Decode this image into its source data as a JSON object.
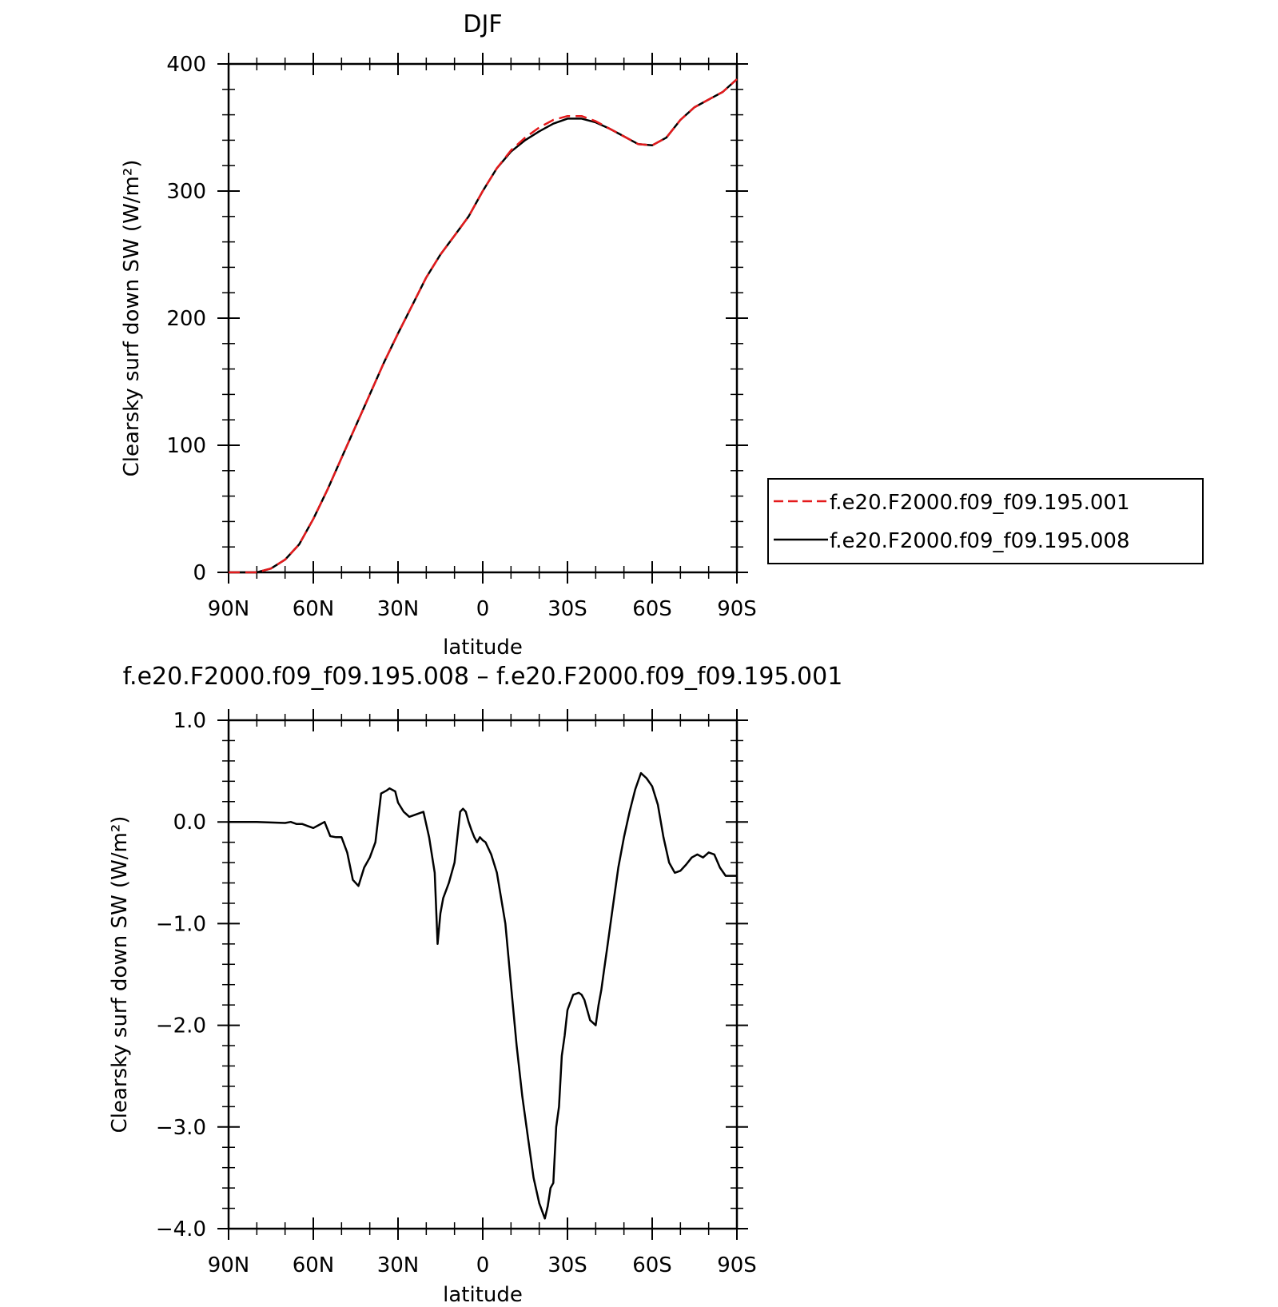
{
  "chart_data": [
    {
      "type": "line",
      "title": "DJF",
      "xlabel": "latitude",
      "ylabel": "Clearsky surf down SW (W/m²)",
      "xlim": [
        -90,
        90
      ],
      "ylim": [
        0,
        400
      ],
      "x_ticks": [
        {
          "value": -90,
          "label": "90N"
        },
        {
          "value": -60,
          "label": "60N"
        },
        {
          "value": -30,
          "label": "30N"
        },
        {
          "value": 0,
          "label": "0"
        },
        {
          "value": 30,
          "label": "30S"
        },
        {
          "value": 60,
          "label": "60S"
        },
        {
          "value": 90,
          "label": "90S"
        }
      ],
      "y_ticks": [
        {
          "value": 0,
          "label": "0"
        },
        {
          "value": 100,
          "label": "100"
        },
        {
          "value": 200,
          "label": "200"
        },
        {
          "value": 300,
          "label": "300"
        },
        {
          "value": 400,
          "label": "400"
        }
      ],
      "legend_position": "right",
      "series": [
        {
          "name": "f.e20.F2000.f09_f09.195.001",
          "color": "#e41a1c",
          "dash": "dashed",
          "x": [
            -90,
            -85,
            -80,
            -75,
            -70,
            -65,
            -60,
            -55,
            -50,
            -45,
            -40,
            -35,
            -30,
            -25,
            -20,
            -15,
            -10,
            -5,
            0,
            5,
            10,
            15,
            20,
            25,
            30,
            35,
            40,
            45,
            50,
            55,
            60,
            65,
            70,
            75,
            80,
            85,
            90
          ],
          "y": [
            0,
            0,
            0,
            3,
            10,
            22,
            42,
            65,
            90,
            115,
            140,
            165,
            188,
            210,
            232,
            250,
            265,
            280,
            300,
            318,
            332,
            342,
            350,
            356,
            359,
            359,
            355,
            349,
            343,
            337,
            336,
            342,
            356,
            366,
            372,
            378,
            388
          ]
        },
        {
          "name": "f.e20.F2000.f09_f09.195.008",
          "color": "#000000",
          "dash": "solid",
          "x": [
            -90,
            -85,
            -80,
            -75,
            -70,
            -65,
            -60,
            -55,
            -50,
            -45,
            -40,
            -35,
            -30,
            -25,
            -20,
            -15,
            -10,
            -5,
            0,
            5,
            10,
            15,
            20,
            25,
            30,
            35,
            40,
            45,
            50,
            55,
            60,
            65,
            70,
            75,
            80,
            85,
            90
          ],
          "y": [
            0,
            0,
            0,
            3,
            10,
            22,
            42,
            65,
            90,
            115,
            140,
            165,
            188,
            210,
            232,
            250,
            265,
            280,
            300,
            318,
            331,
            340,
            347,
            353,
            357,
            357,
            354,
            349,
            343,
            337,
            336,
            342,
            356,
            366,
            372,
            378,
            388
          ]
        }
      ]
    },
    {
      "type": "line",
      "title": "f.e20.F2000.f09_f09.195.008 – f.e20.F2000.f09_f09.195.001",
      "xlabel": "latitude",
      "ylabel": "Clearsky surf down SW (W/m²)",
      "xlim": [
        -90,
        90
      ],
      "ylim": [
        -4,
        1
      ],
      "x_ticks": [
        {
          "value": -90,
          "label": "90N"
        },
        {
          "value": -60,
          "label": "60N"
        },
        {
          "value": -30,
          "label": "30N"
        },
        {
          "value": 0,
          "label": "0"
        },
        {
          "value": 30,
          "label": "30S"
        },
        {
          "value": 60,
          "label": "60S"
        },
        {
          "value": 90,
          "label": "90S"
        }
      ],
      "y_ticks": [
        {
          "value": -4,
          "label": "−4.0"
        },
        {
          "value": -3,
          "label": "−3.0"
        },
        {
          "value": -2,
          "label": "−2.0"
        },
        {
          "value": -1,
          "label": "−1.0"
        },
        {
          "value": 0,
          "label": "0.0"
        },
        {
          "value": 1,
          "label": "1.0"
        }
      ],
      "series": [
        {
          "color": "#000000",
          "dash": "solid",
          "x": [
            -90,
            -80,
            -70,
            -68,
            -66,
            -64,
            -62,
            -60,
            -58,
            -56,
            -54,
            -52,
            -50,
            -48,
            -46,
            -44,
            -42,
            -40,
            -38,
            -36,
            -34,
            -33,
            -31,
            -30,
            -28,
            -26,
            -24,
            -21,
            -19,
            -17,
            -16,
            -15,
            -14,
            -12,
            -10,
            -8,
            -7,
            -6,
            -5,
            -4,
            -3,
            -2,
            -1,
            0,
            1,
            3,
            5,
            8,
            10,
            12,
            14,
            16,
            18,
            20,
            22,
            23,
            24,
            25,
            26,
            27,
            28,
            29,
            30,
            32,
            34,
            35,
            36,
            38,
            40,
            41,
            42,
            43,
            44,
            46,
            48,
            50,
            52,
            54,
            56,
            58,
            60,
            62,
            64,
            66,
            68,
            70,
            72,
            74,
            76,
            78,
            80,
            82,
            84,
            86,
            88,
            90
          ],
          "y": [
            0,
            0,
            -0.01,
            0,
            -0.02,
            -0.02,
            -0.04,
            -0.06,
            -0.03,
            0,
            -0.14,
            -0.15,
            -0.15,
            -0.3,
            -0.57,
            -0.63,
            -0.45,
            -0.35,
            -0.2,
            0.28,
            0.31,
            0.33,
            0.3,
            0.19,
            0.1,
            0.05,
            0.07,
            0.1,
            -0.15,
            -0.5,
            -1.2,
            -0.9,
            -0.75,
            -0.6,
            -0.4,
            0.1,
            0.13,
            0.1,
            0.0,
            -0.08,
            -0.15,
            -0.2,
            -0.15,
            -0.18,
            -0.2,
            -0.32,
            -0.5,
            -1.0,
            -1.6,
            -2.2,
            -2.7,
            -3.1,
            -3.5,
            -3.75,
            -3.9,
            -3.78,
            -3.6,
            -3.55,
            -3.0,
            -2.8,
            -2.3,
            -2.1,
            -1.85,
            -1.7,
            -1.68,
            -1.7,
            -1.75,
            -1.95,
            -2.0,
            -1.8,
            -1.65,
            -1.45,
            -1.25,
            -0.85,
            -0.45,
            -0.15,
            0.1,
            0.32,
            0.48,
            0.43,
            0.35,
            0.17,
            -0.15,
            -0.4,
            -0.5,
            -0.48,
            -0.42,
            -0.35,
            -0.32,
            -0.35,
            -0.3,
            -0.32,
            -0.45,
            -0.53,
            -0.53,
            -0.53
          ]
        }
      ]
    }
  ]
}
